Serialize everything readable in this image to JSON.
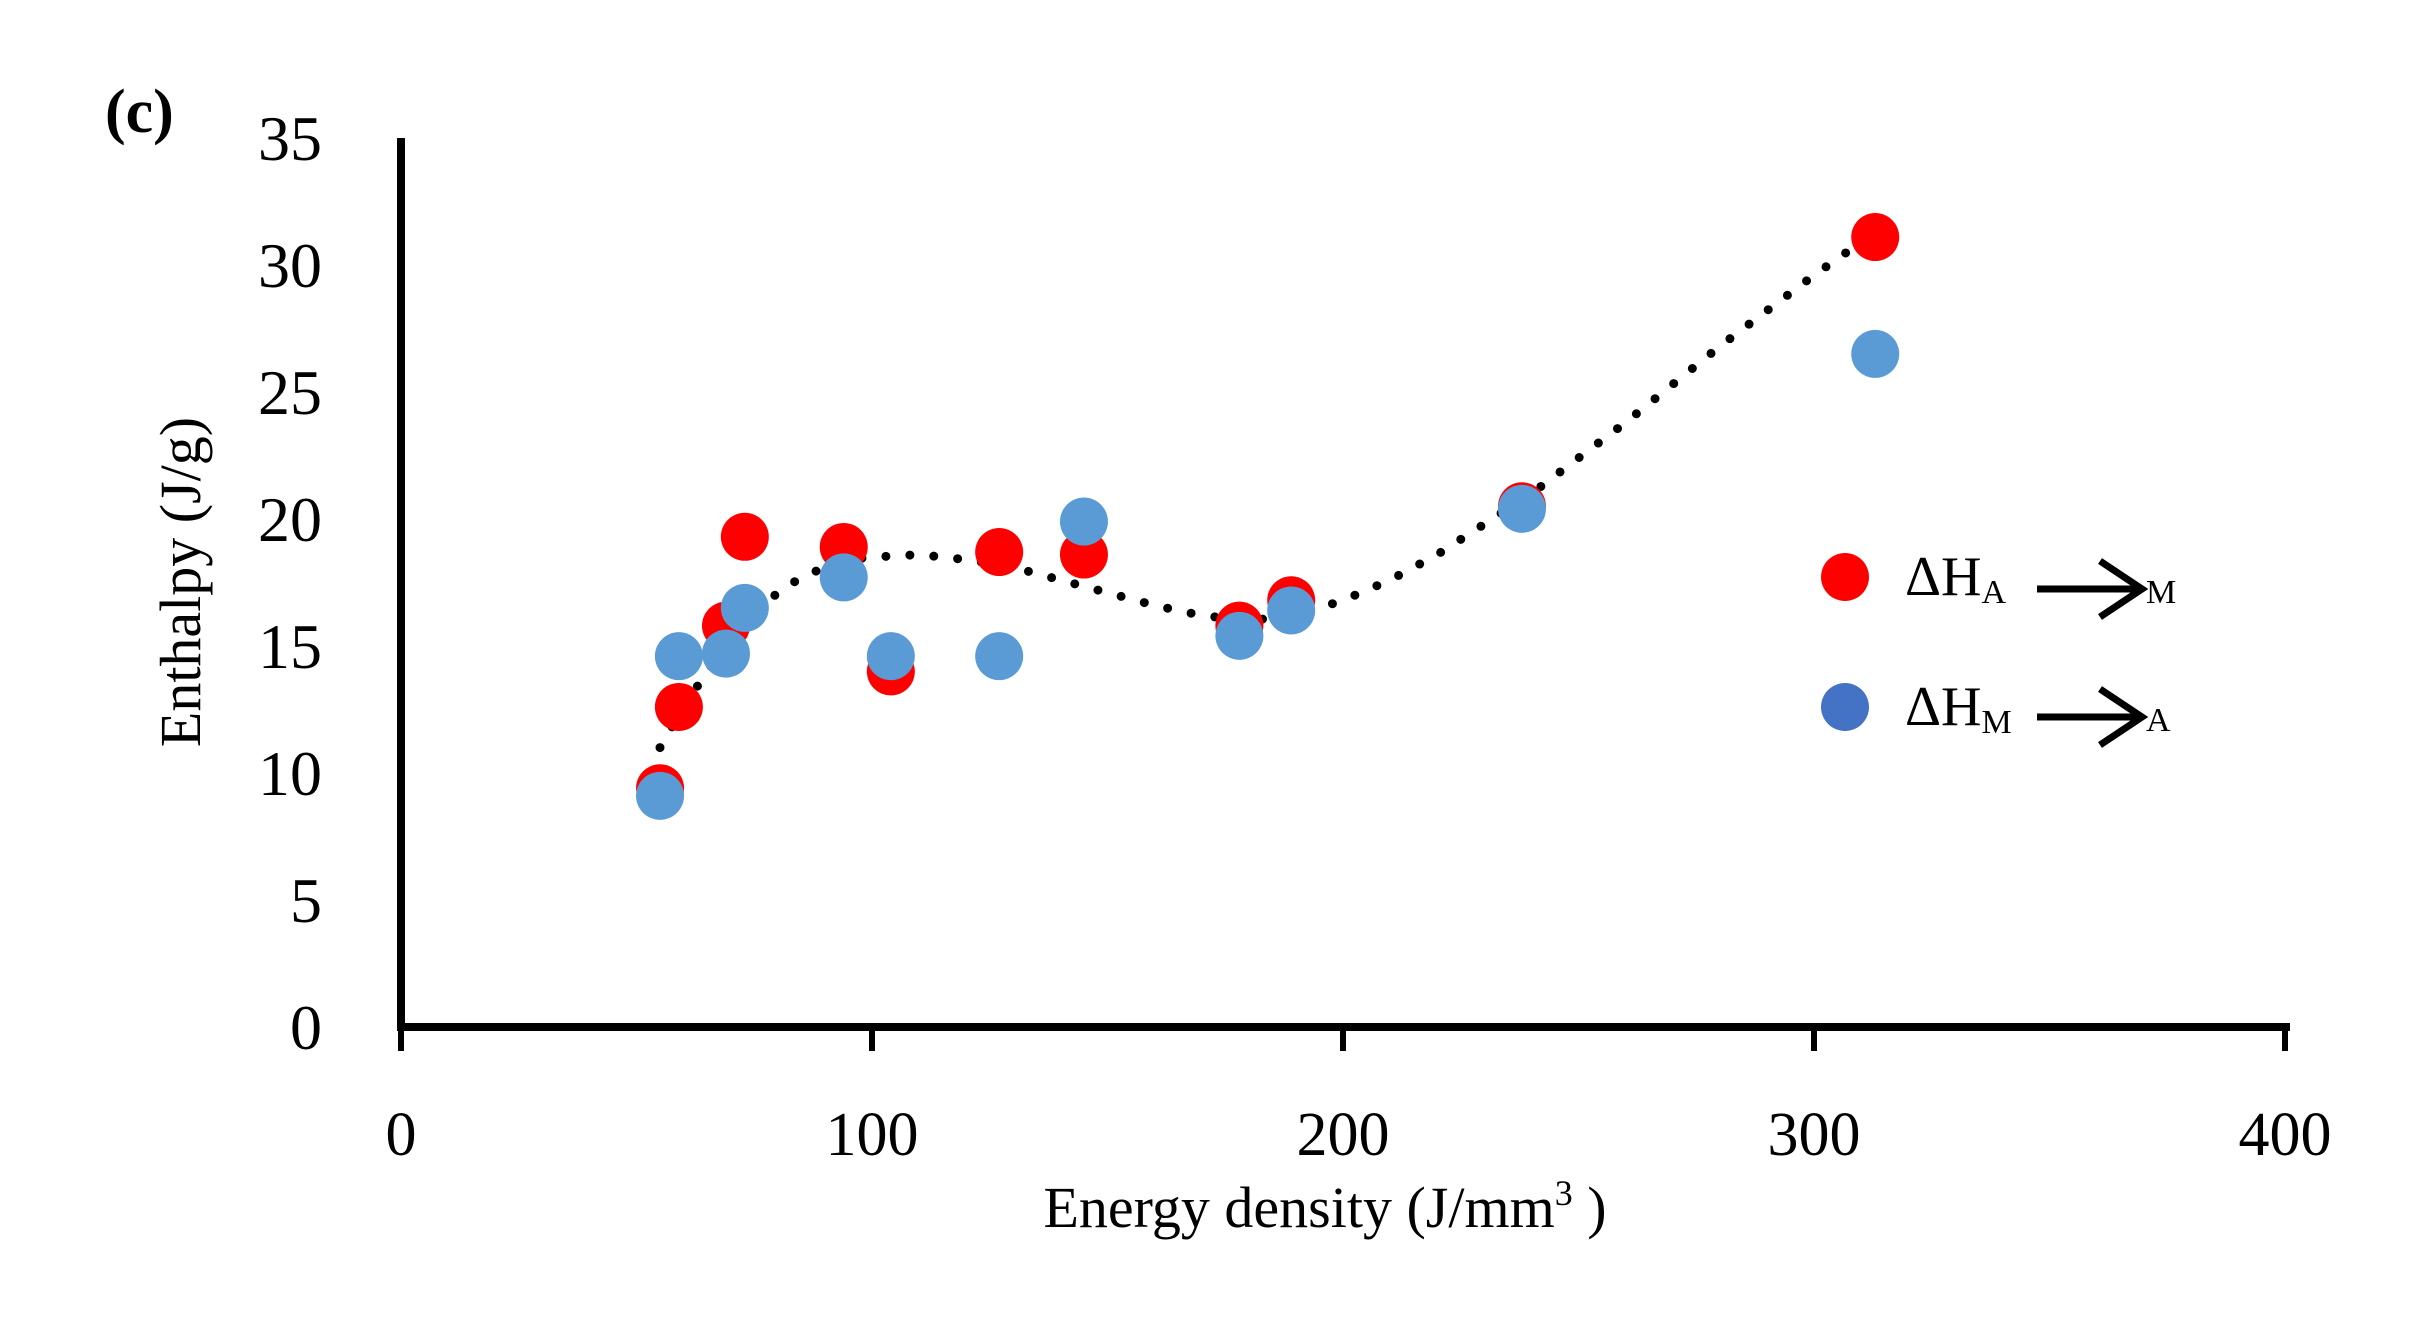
{
  "panel_label": "(c)",
  "chart_data": {
    "type": "scatter",
    "title": "",
    "xlabel": "Energy density (J/mm",
    "xlabel_sup": "3",
    "xlabel_end": " )",
    "ylabel": "Enthalpy (J/g)",
    "xlim": [
      0,
      400
    ],
    "ylim": [
      0,
      35
    ],
    "xticks": [
      0,
      100,
      200,
      300,
      400
    ],
    "yticks": [
      0,
      5,
      10,
      15,
      20,
      25,
      30,
      35
    ],
    "grid": false,
    "legend_position": "right",
    "series": [
      {
        "name": "ΔH A→M",
        "legend_main": "ΔH",
        "legend_sub1": "A",
        "legend_sub2": "M",
        "color": "#ff0000",
        "legend_color": "#ff0000",
        "points": [
          [
            55,
            9.4
          ],
          [
            59,
            12.6
          ],
          [
            69,
            15.8
          ],
          [
            73,
            19.3
          ],
          [
            94,
            18.9
          ],
          [
            104,
            14.0
          ],
          [
            127,
            18.7
          ],
          [
            145,
            18.6
          ],
          [
            178,
            15.8
          ],
          [
            189,
            16.8
          ],
          [
            238,
            20.5
          ],
          [
            313,
            31.1
          ]
        ]
      },
      {
        "name": "ΔH M→A",
        "legend_main": "ΔH",
        "legend_sub1": "M",
        "legend_sub2": "A",
        "color": "#5b9bd5",
        "legend_color": "#4472c4",
        "points": [
          [
            55,
            9.1
          ],
          [
            59,
            14.6
          ],
          [
            69,
            14.7
          ],
          [
            73,
            16.5
          ],
          [
            94,
            17.7
          ],
          [
            104,
            14.6
          ],
          [
            127,
            14.6
          ],
          [
            145,
            19.9
          ],
          [
            178,
            15.4
          ],
          [
            189,
            16.4
          ],
          [
            238,
            20.4
          ],
          [
            313,
            26.5
          ]
        ]
      }
    ],
    "trendline": {
      "style": "dotted",
      "color": "#000000",
      "points": [
        [
          55,
          11.0
        ],
        [
          60,
          12.6
        ],
        [
          65,
          14.0
        ],
        [
          70,
          15.3
        ],
        [
          75,
          16.3
        ],
        [
          80,
          17.1
        ],
        [
          85,
          17.7
        ],
        [
          90,
          18.1
        ],
        [
          95,
          18.4
        ],
        [
          100,
          18.5
        ],
        [
          110,
          18.6
        ],
        [
          120,
          18.4
        ],
        [
          130,
          18.1
        ],
        [
          140,
          17.6
        ],
        [
          150,
          17.1
        ],
        [
          160,
          16.6
        ],
        [
          170,
          16.2
        ],
        [
          180,
          16.0
        ],
        [
          190,
          16.2
        ],
        [
          200,
          16.8
        ],
        [
          210,
          17.6
        ],
        [
          220,
          18.6
        ],
        [
          230,
          19.8
        ],
        [
          240,
          21.0
        ],
        [
          250,
          22.4
        ],
        [
          260,
          23.8
        ],
        [
          270,
          25.3
        ],
        [
          280,
          26.8
        ],
        [
          290,
          28.2
        ],
        [
          300,
          29.6
        ],
        [
          310,
          30.9
        ]
      ]
    }
  }
}
